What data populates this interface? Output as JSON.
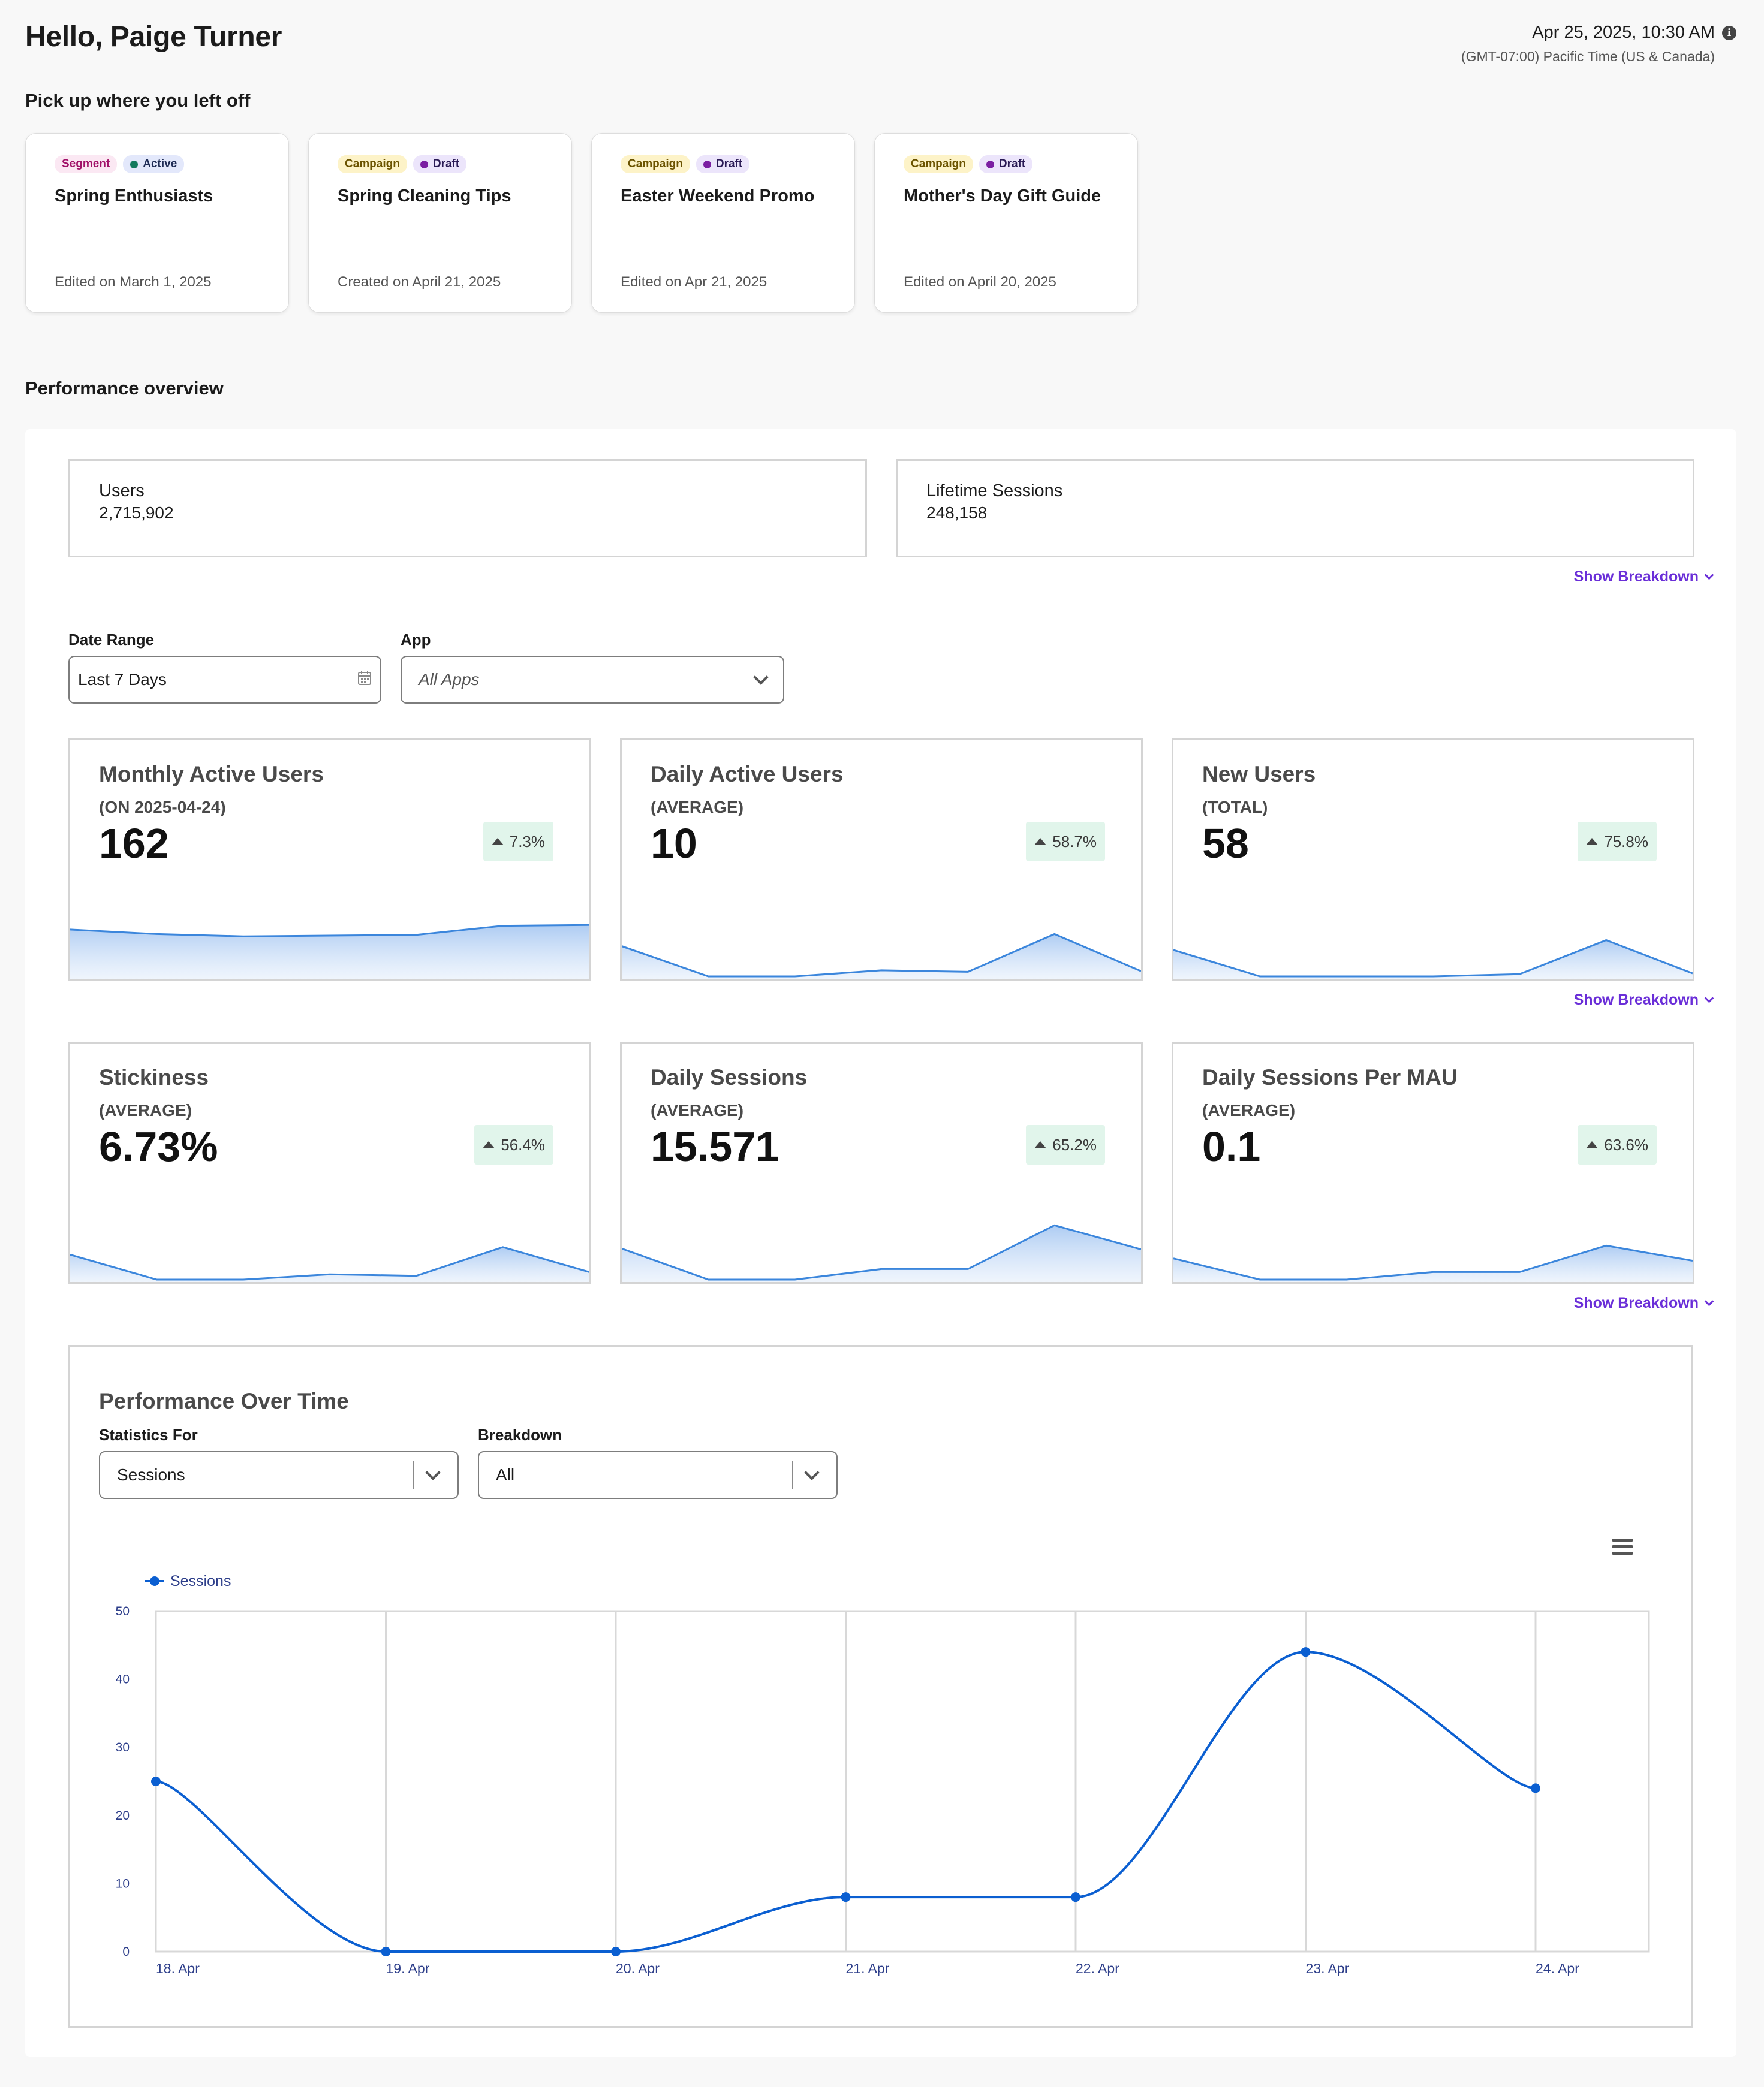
{
  "header": {
    "greeting": "Hello, Paige Turner",
    "datetime": "Apr 25, 2025, 10:30 AM",
    "timezone": "(GMT-07:00) Pacific Time (US & Canada)",
    "info_icon": "info-icon"
  },
  "recent": {
    "heading": "Pick up where you left off",
    "cards": [
      {
        "type": "Segment",
        "status": "Active",
        "title": "Spring Enthusiasts",
        "date": "Edited on March 1, 2025"
      },
      {
        "type": "Campaign",
        "status": "Draft",
        "title": "Spring Cleaning Tips",
        "date": "Created on April 21, 2025"
      },
      {
        "type": "Campaign",
        "status": "Draft",
        "title": "Easter Weekend Promo",
        "date": "Edited on Apr 21, 2025"
      },
      {
        "type": "Campaign",
        "status": "Draft",
        "title": "Mother's Day Gift Guide",
        "date": "Edited on April 20, 2025"
      }
    ]
  },
  "performance": {
    "heading": "Performance overview",
    "stats": [
      {
        "label": "Users",
        "value": "2,715,902"
      },
      {
        "label": "Lifetime Sessions",
        "value": "248,158"
      }
    ],
    "show_breakdown": "Show Breakdown",
    "filters": {
      "date_range_label": "Date Range",
      "date_range_value": "Last 7 Days",
      "app_label": "App",
      "app_placeholder": "All Apps"
    },
    "kpis": [
      {
        "title": "Monthly Active Users",
        "sub": "(ON 2025-04-24)",
        "value": "162",
        "change": "7.3%",
        "trend": [
          0.62,
          0.56,
          0.53,
          0.54,
          0.55,
          0.67,
          0.68
        ]
      },
      {
        "title": "Daily Active Users",
        "sub": "(AVERAGE)",
        "value": "10",
        "change": "58.7%",
        "trend": [
          0.4,
          0.0,
          0.0,
          0.08,
          0.06,
          0.56,
          0.07
        ]
      },
      {
        "title": "New Users",
        "sub": "(TOTAL)",
        "value": "58",
        "change": "75.8%",
        "trend": [
          0.35,
          0.0,
          0.0,
          0.0,
          0.03,
          0.48,
          0.04
        ]
      },
      {
        "title": "Stickiness",
        "sub": "(AVERAGE)",
        "value": "6.73%",
        "change": "56.4%",
        "trend": [
          0.33,
          0.0,
          0.0,
          0.07,
          0.05,
          0.43,
          0.1
        ]
      },
      {
        "title": "Daily Sessions",
        "sub": "(AVERAGE)",
        "value": "15.571",
        "change": "65.2%",
        "trend": [
          0.41,
          0.0,
          0.0,
          0.14,
          0.14,
          0.72,
          0.4
        ]
      },
      {
        "title": "Daily Sessions Per MAU",
        "sub": "(AVERAGE)",
        "value": "0.1",
        "change": "63.6%",
        "trend": [
          0.28,
          0.0,
          0.0,
          0.1,
          0.1,
          0.45,
          0.25
        ]
      }
    ],
    "colors": {
      "accent": "#6a2ed8",
      "line": "#3b86dc",
      "chart_line": "#0b5fd1"
    }
  },
  "over_time": {
    "title": "Performance Over Time",
    "stats_for_label": "Statistics For",
    "stats_for_value": "Sessions",
    "breakdown_label": "Breakdown",
    "breakdown_value": "All",
    "menu_icon": "hamburger-icon"
  },
  "chart_data": {
    "type": "line",
    "series": [
      {
        "name": "Sessions",
        "values": [
          25,
          0,
          0,
          8,
          8,
          44,
          24
        ]
      }
    ],
    "x": [
      "18. Apr",
      "19. Apr",
      "20. Apr",
      "21. Apr",
      "22. Apr",
      "23. Apr",
      "24. Apr"
    ],
    "yticks": [
      0,
      10,
      20,
      30,
      40,
      50
    ],
    "ylim": [
      0,
      50
    ],
    "legend": "top-left",
    "grid": "vertical"
  }
}
